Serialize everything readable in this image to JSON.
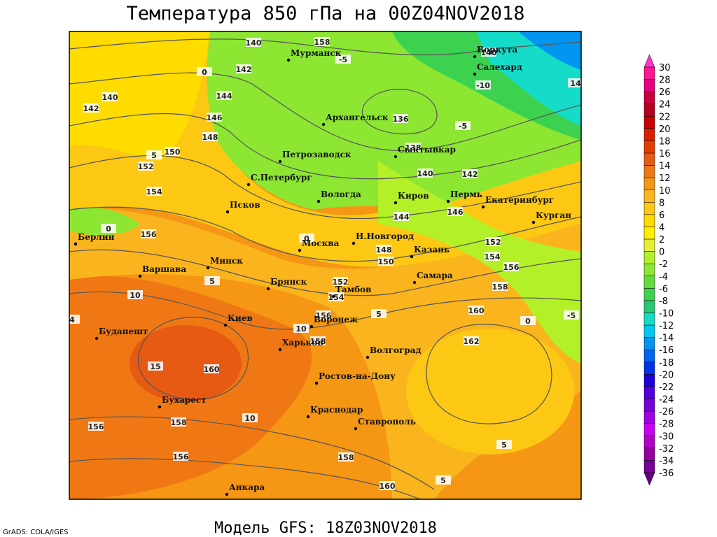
{
  "title": "Температура 850 гПа на 00Z04NOV2018",
  "footer": "Модель GFS: 18Z03NOV2018",
  "credit": "GrADS: COLA/IGES",
  "cities": [
    "Мурманск",
    "Воркута",
    "Салехард",
    "Архангельск",
    "Петрозаводск",
    "Сыктывкар",
    "С.Петербург",
    "Вологда",
    "Киров",
    "Пермь",
    "Екатеринбург",
    "Курган",
    "Псков",
    "Берлин",
    "Москва",
    "Н.Новгород",
    "Казань",
    "Варшава",
    "Минск",
    "Брянск",
    "Самара",
    "Тамбов",
    "Воронеж",
    "Киев",
    "Будапешт",
    "Харьков",
    "Волгоград",
    "Ростов-на-Дону",
    "Бухарест",
    "Краснодар",
    "Ставрополь",
    "Анкара"
  ],
  "isohypse_labels": [
    140,
    158,
    142,
    144,
    146,
    148,
    150,
    152,
    154,
    156,
    136,
    138,
    140,
    142,
    144,
    146,
    148,
    150,
    152,
    154,
    156,
    158,
    152,
    154,
    156,
    158,
    160,
    160,
    162,
    158,
    156,
    156,
    158,
    160,
    140,
    140,
    142
  ],
  "isotherm_labels": [
    0,
    -5,
    -10,
    -5,
    5,
    0,
    0,
    5,
    10,
    4,
    5,
    10,
    15,
    10,
    0,
    -5,
    5,
    5,
    14
  ],
  "colorbar": {
    "levels": [
      30,
      28,
      26,
      24,
      22,
      20,
      18,
      16,
      14,
      12,
      10,
      8,
      6,
      4,
      2,
      0,
      -2,
      -4,
      -6,
      -8,
      -10,
      -12,
      -14,
      -16,
      -18,
      -20,
      -22,
      -24,
      -26,
      -28,
      -30,
      -32,
      -34,
      -36
    ],
    "colors": [
      "#ff33cc",
      "#ff1493",
      "#e6007e",
      "#c8003c",
      "#b4001e",
      "#c80000",
      "#dc1e00",
      "#e63c00",
      "#e65a14",
      "#f07814",
      "#f59614",
      "#fab41e",
      "#fcc814",
      "#ffdc00",
      "#fff000",
      "#e6f032",
      "#b4f028",
      "#8ce632",
      "#64dc3c",
      "#3cd250",
      "#28c878",
      "#14dcc8",
      "#00c8f0",
      "#0096f0",
      "#0064f0",
      "#0032e6",
      "#1e00dc",
      "#5000dc",
      "#7800dc",
      "#a000e6",
      "#c800f0",
      "#b400c8",
      "#9600a0",
      "#780096",
      "#640082"
    ]
  }
}
